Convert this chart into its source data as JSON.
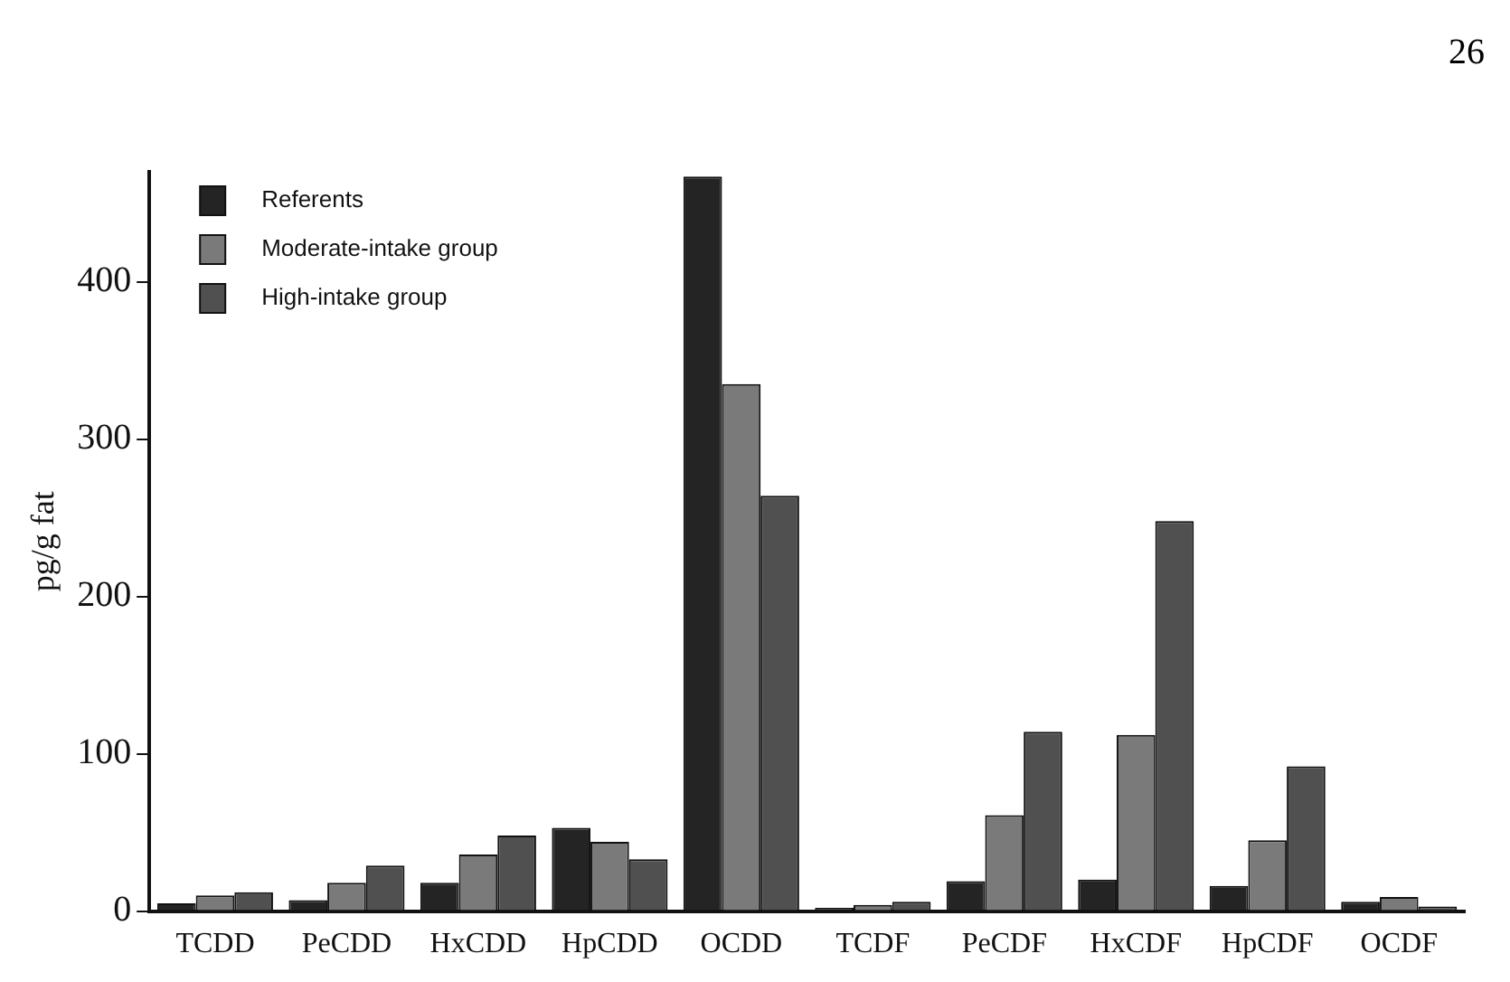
{
  "chart_data": {
    "type": "bar",
    "ylabel": "pg/g fat",
    "annotations": [
      "26"
    ],
    "categories": [
      "TCDD",
      "PeCDD",
      "HxCDD",
      "HpCDD",
      "OCDD",
      "TCDF",
      "PeCDF",
      "HxCDF",
      "HpCDF",
      "OCDF"
    ],
    "series": [
      {
        "name": "Referents",
        "color": "#242424",
        "values": [
          5,
          7,
          18,
          53,
          467,
          2,
          19,
          20,
          16,
          6
        ]
      },
      {
        "name": "Moderate-intake group",
        "color": "#7a7a7a",
        "values": [
          10,
          18,
          36,
          44,
          335,
          4,
          61,
          112,
          45,
          9
        ]
      },
      {
        "name": "High-intake group",
        "color": "#505050",
        "values": [
          12,
          29,
          48,
          33,
          264,
          6,
          114,
          248,
          92,
          3
        ]
      }
    ],
    "ylim": [
      0,
      470
    ],
    "yticks": [
      0,
      100,
      200,
      300,
      400
    ],
    "grid": false,
    "legend": "top left"
  }
}
